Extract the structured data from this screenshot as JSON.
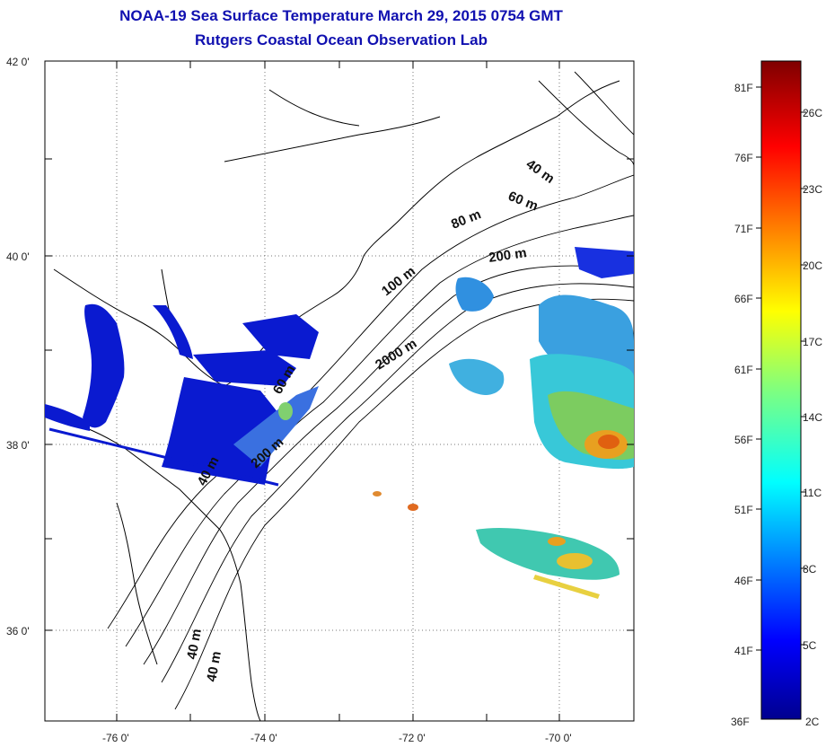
{
  "title": {
    "line1": "NOAA-19 Sea Surface Temperature March 29, 2015 0754 GMT",
    "line2": "Rutgers Coastal Ocean Observation Lab"
  },
  "axes": {
    "lat_labels": [
      "42 0'",
      "40 0'",
      "38 0'",
      "36 0'"
    ],
    "lon_labels": [
      "-76 0'",
      "-74 0'",
      "-72 0'",
      "-70 0'"
    ]
  },
  "contours": {
    "labels": [
      "40 m",
      "60 m",
      "80 m",
      "200 m",
      "100 m",
      "2000 m",
      "60 m",
      "200 m",
      "40 m",
      "40 m"
    ]
  },
  "colorbar": {
    "fahrenheit": [
      "81F",
      "76F",
      "71F",
      "66F",
      "61F",
      "56F",
      "51F",
      "46F",
      "41F",
      "36F"
    ],
    "celsius": [
      "26C",
      "23C",
      "20C",
      "17C",
      "14C",
      "11C",
      "8C",
      "5C",
      "2C"
    ]
  },
  "colors": {
    "title": "#1010b0",
    "land_water_blue": "#0a1ad0",
    "sst_cyan": "#3cc8e0",
    "sst_green": "#7ad060",
    "sst_orange": "#e8a020"
  }
}
